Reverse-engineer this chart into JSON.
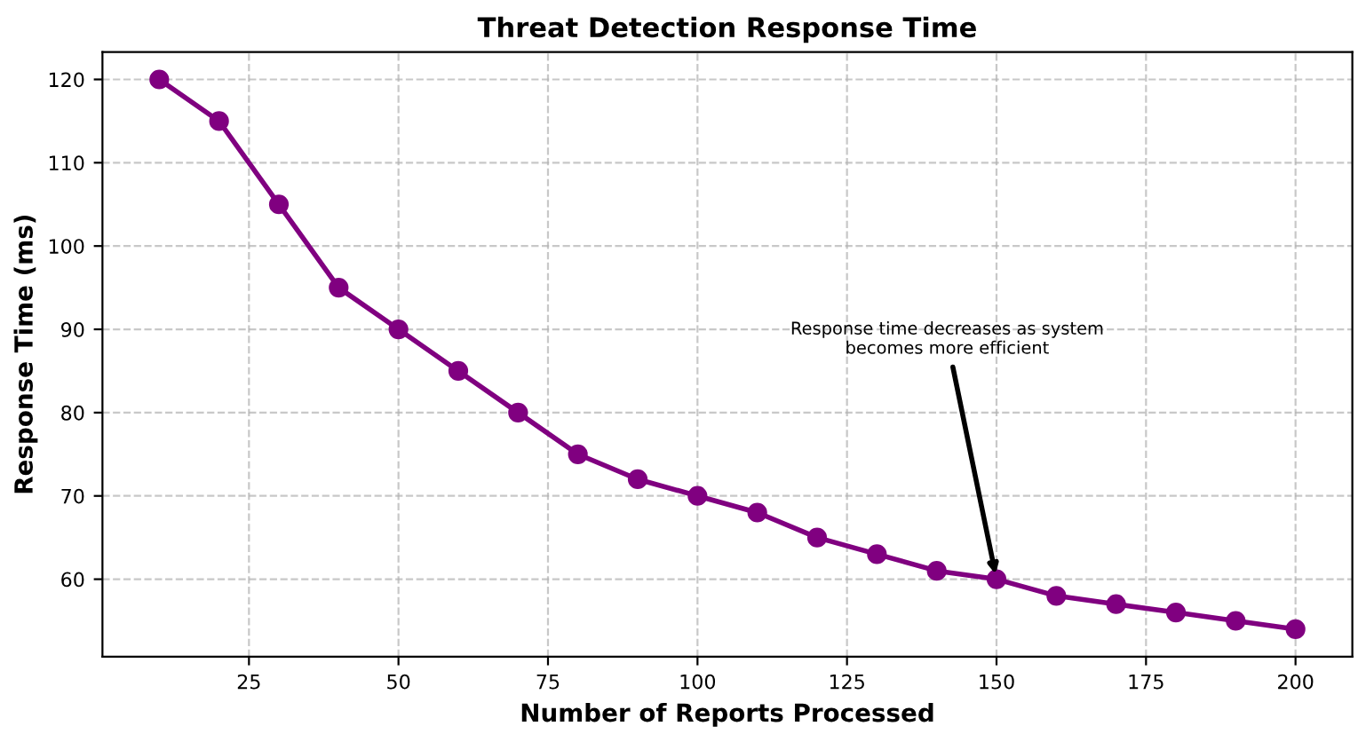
{
  "chart_data": {
    "type": "line",
    "title": "Threat Detection Response Time",
    "xlabel": "Number of Reports Processed",
    "ylabel": "Response Time (ms)",
    "x": [
      10,
      20,
      30,
      40,
      50,
      60,
      70,
      80,
      90,
      100,
      110,
      120,
      130,
      140,
      150,
      160,
      170,
      180,
      190,
      200
    ],
    "series": [
      {
        "color": "#800080",
        "values": [
          120,
          115,
          105,
          95,
          90,
          85,
          80,
          75,
          72,
          70,
          68,
          65,
          63,
          61,
          60,
          58,
          57,
          56,
          55,
          54
        ]
      }
    ],
    "xlim": [
      0.5,
      209.5
    ],
    "xticks": [
      25,
      50,
      75,
      100,
      125,
      150,
      175,
      200
    ],
    "ylim": [
      50.7,
      123.3
    ],
    "yticks": [
      60,
      70,
      80,
      90,
      100,
      110,
      120
    ],
    "annotations": [
      {
        "text": "Response time decreases as system\nbecomes more efficient",
        "x": 150,
        "y": 60
      }
    ],
    "grid": true,
    "marker": "circle",
    "line_style": "solid",
    "legend": false
  }
}
